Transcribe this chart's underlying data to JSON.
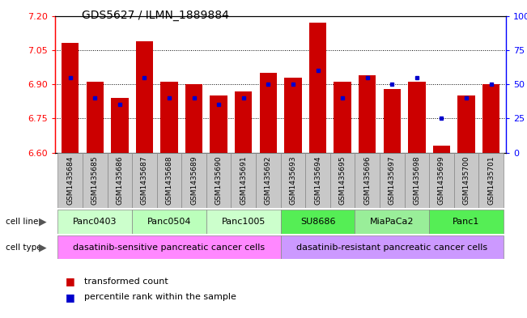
{
  "title": "GDS5627 / ILMN_1889884",
  "samples": [
    "GSM1435684",
    "GSM1435685",
    "GSM1435686",
    "GSM1435687",
    "GSM1435688",
    "GSM1435689",
    "GSM1435690",
    "GSM1435691",
    "GSM1435692",
    "GSM1435693",
    "GSM1435694",
    "GSM1435695",
    "GSM1435696",
    "GSM1435697",
    "GSM1435698",
    "GSM1435699",
    "GSM1435700",
    "GSM1435701"
  ],
  "bar_values": [
    7.08,
    6.91,
    6.84,
    7.09,
    6.91,
    6.9,
    6.85,
    6.87,
    6.95,
    6.93,
    7.17,
    6.91,
    6.94,
    6.88,
    6.91,
    6.63,
    6.85,
    6.9
  ],
  "percentile_pct": [
    55,
    40,
    35,
    55,
    40,
    40,
    35,
    40,
    50,
    50,
    60,
    40,
    55,
    50,
    55,
    25,
    40,
    50
  ],
  "ylim": [
    6.6,
    7.2
  ],
  "yticks": [
    6.6,
    6.75,
    6.9,
    7.05,
    7.2
  ],
  "right_yticks": [
    0,
    25,
    50,
    75,
    100
  ],
  "baseline": 6.6,
  "bar_color": "#cc0000",
  "marker_color": "#0000cc",
  "cell_lines": [
    {
      "name": "Panc0403",
      "start": 0,
      "end": 3,
      "color": "#ccffcc"
    },
    {
      "name": "Panc0504",
      "start": 3,
      "end": 6,
      "color": "#bbffbb"
    },
    {
      "name": "Panc1005",
      "start": 6,
      "end": 9,
      "color": "#ccffcc"
    },
    {
      "name": "SU8686",
      "start": 9,
      "end": 12,
      "color": "#55ee55"
    },
    {
      "name": "MiaPaCa2",
      "start": 12,
      "end": 15,
      "color": "#99ee99"
    },
    {
      "name": "Panc1",
      "start": 15,
      "end": 18,
      "color": "#55ee55"
    }
  ],
  "cell_types": [
    {
      "name": "dasatinib-sensitive pancreatic cancer cells",
      "start": 0,
      "end": 9,
      "color": "#ff88ff"
    },
    {
      "name": "dasatinib-resistant pancreatic cancer cells",
      "start": 9,
      "end": 18,
      "color": "#cc99ff"
    }
  ],
  "xtick_bg_color": "#c8c8c8",
  "legend_items": [
    {
      "label": "transformed count",
      "color": "#cc0000"
    },
    {
      "label": "percentile rank within the sample",
      "color": "#0000cc"
    }
  ]
}
